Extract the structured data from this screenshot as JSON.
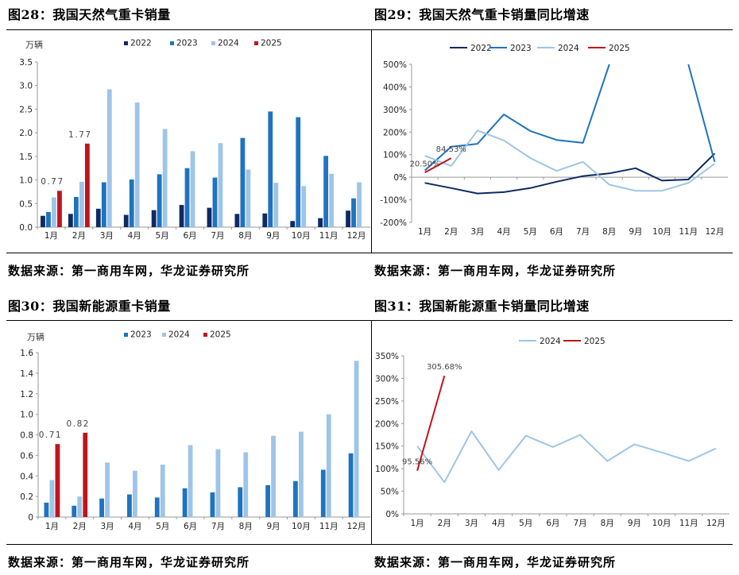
{
  "titles": {
    "fig28": "图28：我国天然气重卡销量",
    "fig29": "图29：我国天然气重卡销量同比增速",
    "fig30": "图30：我国新能源重卡销量",
    "fig31": "图31：我国新能源重卡销量同比增速"
  },
  "sources": {
    "fig28": "数据来源：第一商用车网，华龙证券研究所",
    "fig29": "数据来源：第一商用车网，华龙证券研究所",
    "fig30": "数据来源：第一商用车网，华龙证券研究所",
    "fig31": "数据来源：第一商用车网，华龙证券研究所"
  },
  "colors": {
    "c2022": "#0e2a63",
    "c2023": "#1f73c0",
    "c2024": "#9ec5e8",
    "c2025": "#c0141c"
  },
  "chart_data": [
    {
      "id": "fig28",
      "type": "bar",
      "unit_label": "万辆",
      "categories": [
        "1月",
        "2月",
        "3月",
        "4月",
        "5月",
        "6月",
        "7月",
        "8月",
        "9月",
        "10月",
        "11月",
        "12月"
      ],
      "ylim": [
        0,
        3.5
      ],
      "yticks": [
        "0.0",
        "0.5",
        "1.0",
        "1.5",
        "2.0",
        "2.5",
        "3.0",
        "3.5"
      ],
      "legend_position": "top-center",
      "series": [
        {
          "name": "2022",
          "values": [
            0.24,
            0.28,
            0.39,
            0.26,
            0.36,
            0.47,
            0.41,
            0.28,
            0.29,
            0.13,
            0.19,
            0.35
          ]
        },
        {
          "name": "2023",
          "values": [
            0.32,
            0.64,
            0.95,
            1.01,
            1.12,
            1.25,
            1.05,
            1.89,
            2.45,
            2.33,
            1.51,
            0.61
          ]
        },
        {
          "name": "2024",
          "values": [
            0.63,
            0.96,
            2.92,
            2.64,
            2.08,
            1.61,
            1.78,
            1.22,
            0.94,
            0.87,
            1.13,
            0.95
          ]
        },
        {
          "name": "2025",
          "values": [
            0.77,
            1.77,
            null,
            null,
            null,
            null,
            null,
            null,
            null,
            null,
            null,
            null
          ]
        }
      ],
      "data_labels": [
        {
          "series": "2025",
          "index": 0,
          "text": "0.77"
        },
        {
          "series": "2025",
          "index": 1,
          "text": "1.77"
        }
      ]
    },
    {
      "id": "fig29",
      "type": "line",
      "categories": [
        "1月",
        "2月",
        "3月",
        "4月",
        "5月",
        "6月",
        "7月",
        "8月",
        "9月",
        "10月",
        "11月",
        "12月"
      ],
      "ylim": [
        -200,
        500
      ],
      "yticks": [
        "-200%",
        "-100%",
        "0%",
        "100%",
        "200%",
        "300%",
        "400%",
        "500%"
      ],
      "legend_position": "top-center",
      "series": [
        {
          "name": "2022",
          "values": [
            -25,
            -48,
            -72,
            -66,
            -48,
            -20,
            5,
            17,
            40,
            -15,
            -10,
            105
          ]
        },
        {
          "name": "2023",
          "values": [
            30,
            135,
            148,
            278,
            205,
            165,
            152,
            500,
            null,
            null,
            500,
            68
          ]
        },
        {
          "name": "2024",
          "values": [
            95,
            50,
            207,
            163,
            85,
            28,
            68,
            -33,
            -60,
            -60,
            -25,
            60
          ]
        },
        {
          "name": "2025",
          "values": [
            20.5,
            84.53,
            null,
            null,
            null,
            null,
            null,
            null,
            null,
            null,
            null,
            null
          ]
        }
      ],
      "data_labels": [
        {
          "series": "2025",
          "index": 0,
          "text": "20.50%"
        },
        {
          "series": "2025",
          "index": 1,
          "text": "84.53%"
        }
      ]
    },
    {
      "id": "fig30",
      "type": "bar",
      "unit_label": "万辆",
      "categories": [
        "1月",
        "2月",
        "3月",
        "4月",
        "5月",
        "6月",
        "7月",
        "8月",
        "9月",
        "10月",
        "11月",
        "12月"
      ],
      "ylim": [
        0,
        1.6
      ],
      "yticks": [
        "0",
        "0.2",
        "0.4",
        "0.6",
        "0.8",
        "1.0",
        "1.2",
        "1.4",
        "1.6"
      ],
      "legend_position": "top-center",
      "series": [
        {
          "name": "2023",
          "values": [
            0.14,
            0.11,
            0.18,
            0.22,
            0.19,
            0.28,
            0.24,
            0.29,
            0.31,
            0.35,
            0.46,
            0.62
          ]
        },
        {
          "name": "2024",
          "values": [
            0.36,
            0.2,
            0.53,
            0.45,
            0.51,
            0.7,
            0.66,
            0.63,
            0.79,
            0.83,
            1.0,
            1.52
          ]
        },
        {
          "name": "2025",
          "values": [
            0.71,
            0.82,
            null,
            null,
            null,
            null,
            null,
            null,
            null,
            null,
            null,
            null
          ]
        }
      ],
      "data_labels": [
        {
          "series": "2025",
          "index": 0,
          "text": "0.71"
        },
        {
          "series": "2025",
          "index": 1,
          "text": "0.82"
        }
      ]
    },
    {
      "id": "fig31",
      "type": "line",
      "categories": [
        "1月",
        "2月",
        "3月",
        "4月",
        "5月",
        "6月",
        "7月",
        "8月",
        "9月",
        "10月",
        "11月",
        "12月"
      ],
      "ylim": [
        0,
        350
      ],
      "yticks": [
        "0%",
        "50%",
        "100%",
        "150%",
        "200%",
        "250%",
        "300%",
        "350%"
      ],
      "legend_position": "top-center",
      "series": [
        {
          "name": "2024",
          "values": [
            150,
            70,
            183,
            97,
            173,
            148,
            175,
            117,
            154,
            136,
            117,
            145
          ]
        },
        {
          "name": "2025",
          "values": [
            95.56,
            305.68,
            null,
            null,
            null,
            null,
            null,
            null,
            null,
            null,
            null,
            null
          ]
        }
      ],
      "data_labels": [
        {
          "series": "2025",
          "index": 0,
          "text": "95.56%"
        },
        {
          "series": "2025",
          "index": 1,
          "text": "305.68%"
        }
      ]
    }
  ]
}
